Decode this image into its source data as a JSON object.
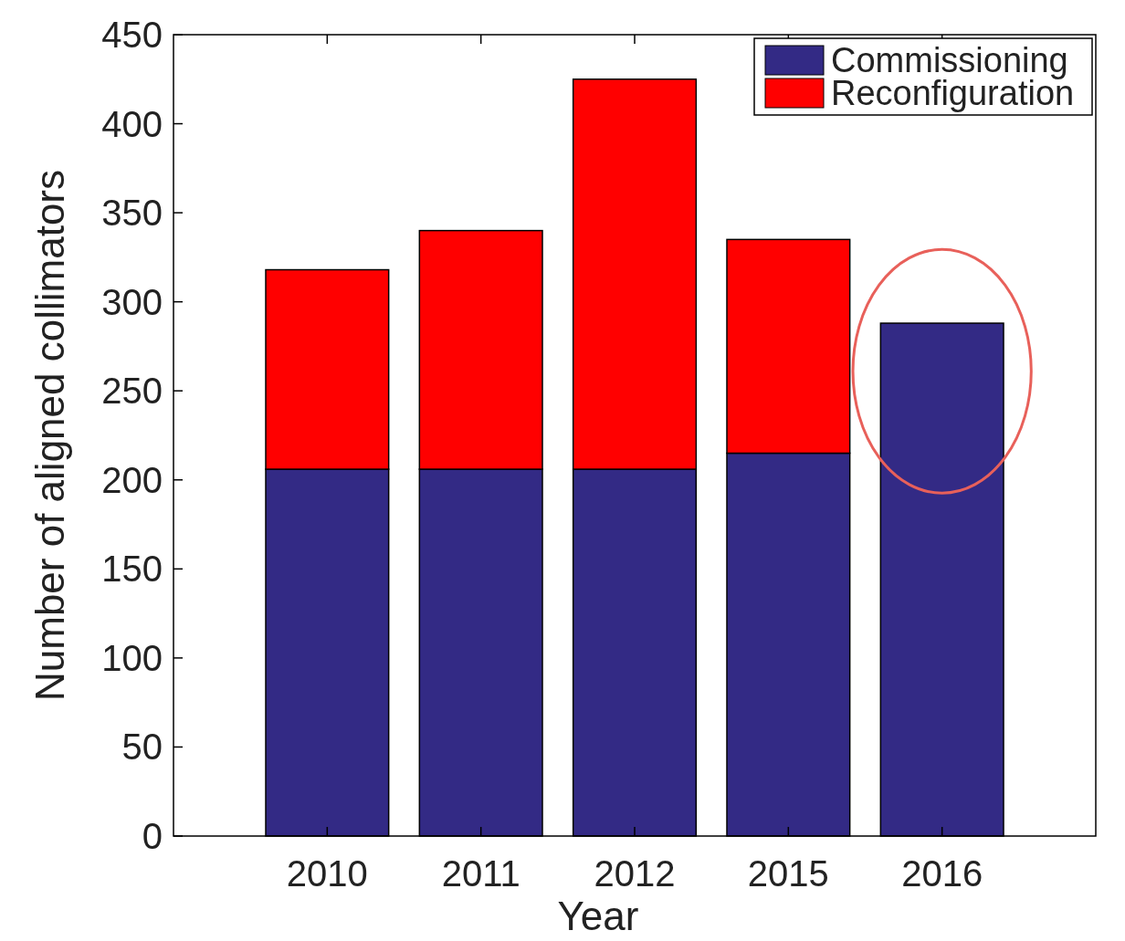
{
  "chart_data": {
    "type": "bar",
    "stacked": true,
    "xlabel": "Year",
    "ylabel": "Number of aligned collimators",
    "categories": [
      "2010",
      "2011",
      "2012",
      "2015",
      "2016"
    ],
    "series": [
      {
        "name": "Commissioning",
        "color": "#332a85",
        "values": [
          206,
          206,
          206,
          215,
          288
        ]
      },
      {
        "name": "Reconfiguration",
        "color": "#ff0000",
        "values": [
          112,
          134,
          219,
          120,
          null
        ]
      }
    ],
    "ylim": [
      0,
      450
    ],
    "yticks": [
      0,
      50,
      100,
      150,
      200,
      250,
      300,
      350,
      400,
      450
    ],
    "grid": false,
    "legend": "top right"
  }
}
